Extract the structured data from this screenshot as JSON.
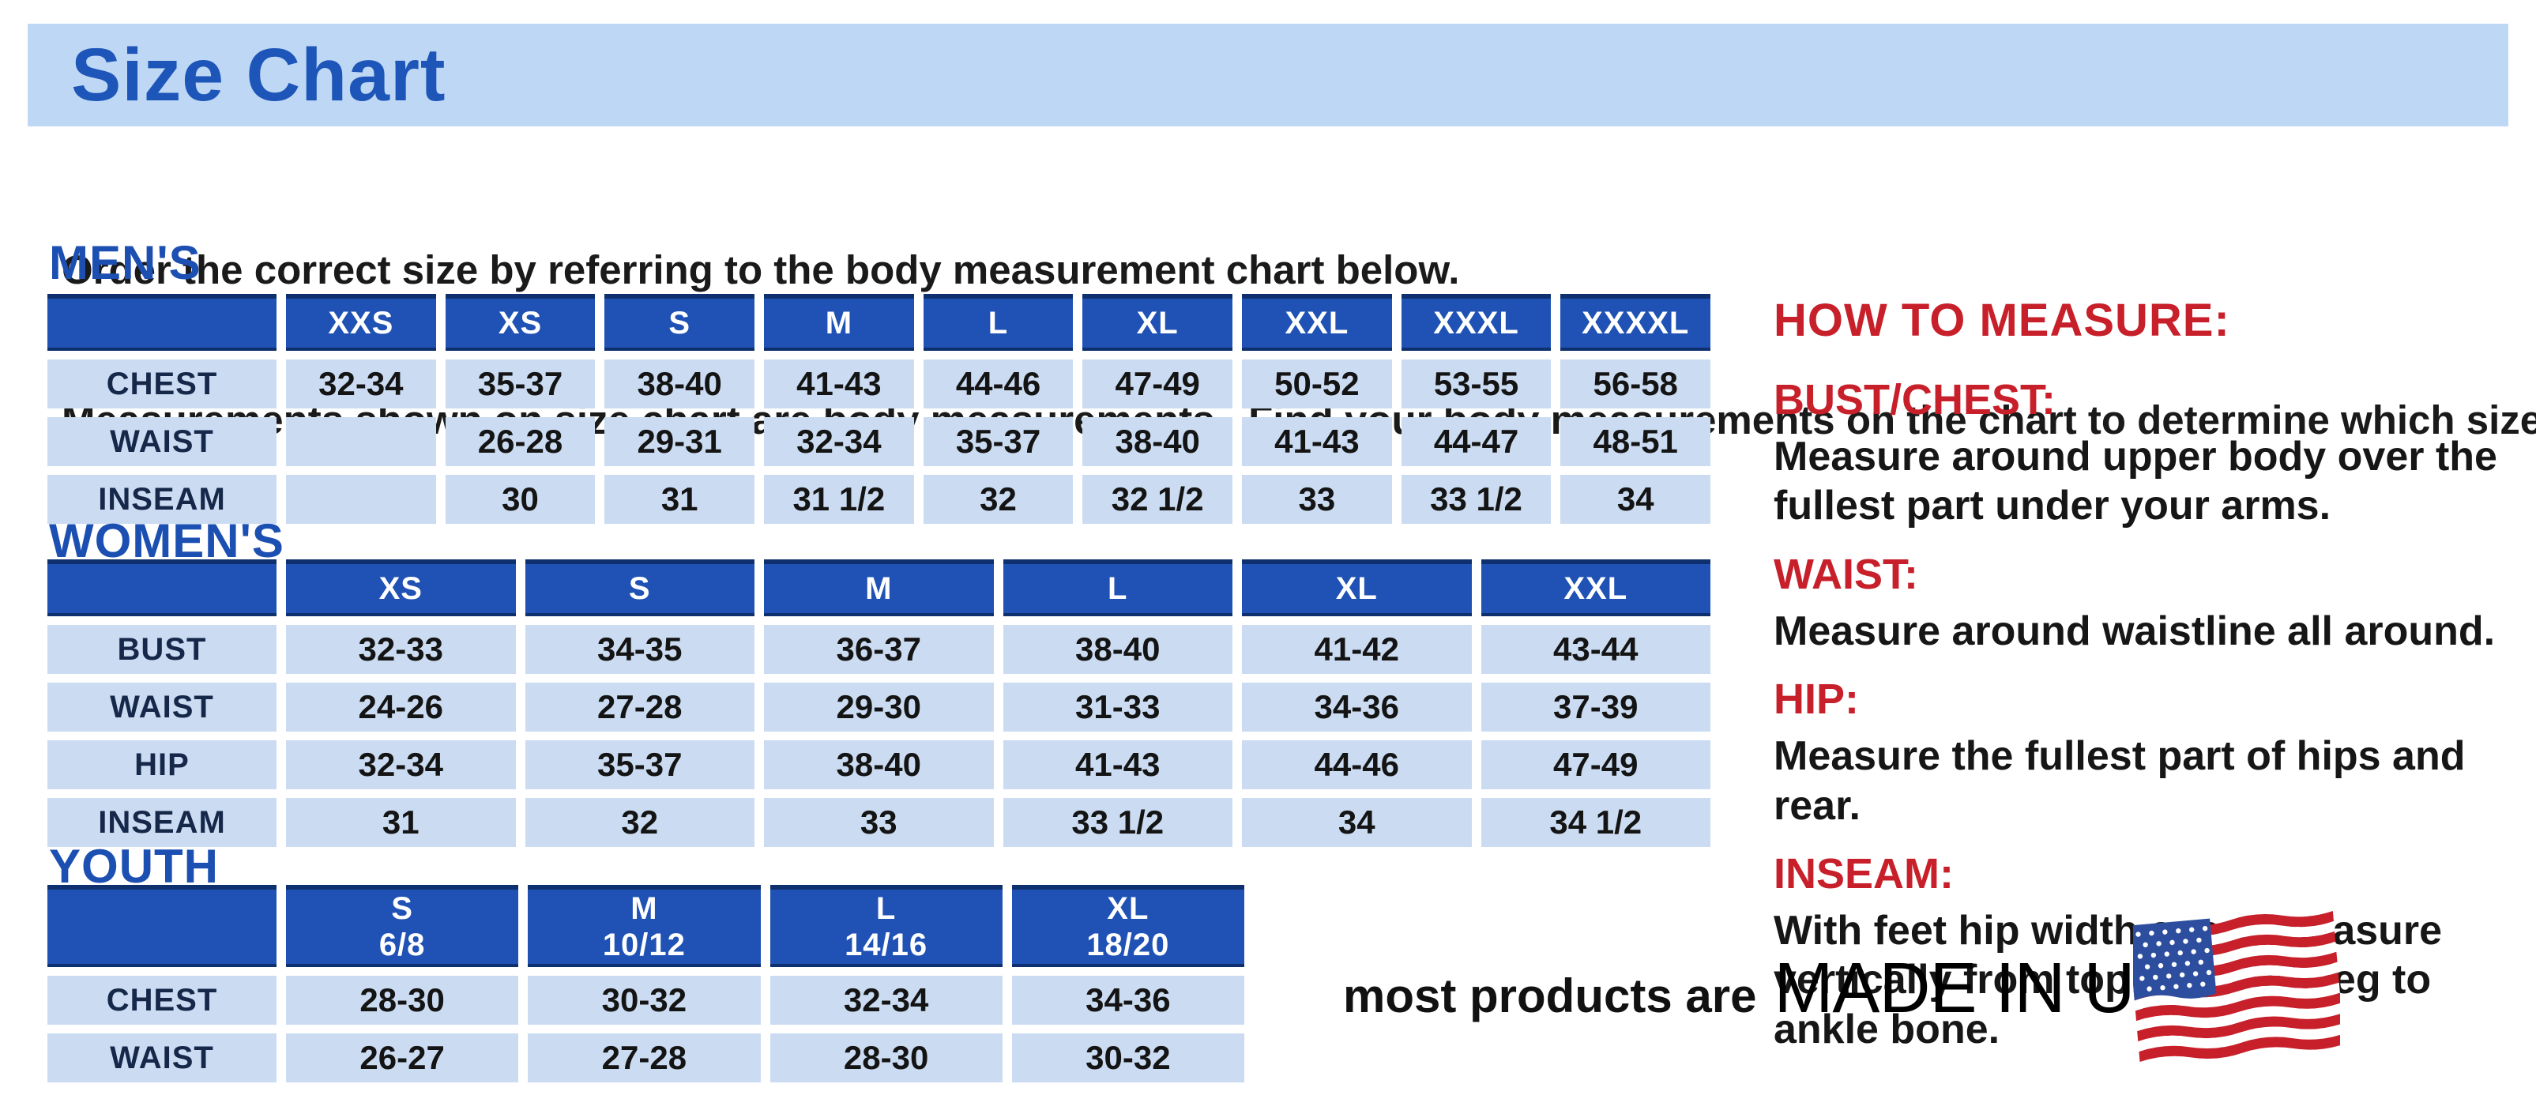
{
  "banner": {
    "title": "Size Chart"
  },
  "intro": {
    "line1": "Order the correct size by referring to the body measurement chart below.",
    "line2": "Measurements shown on size chart are body measurements.  Find your body measurements on the chart to determine which size to order."
  },
  "colors": {
    "banner_blue": "#bed7f5",
    "title_blue": "#1d56b8",
    "table_header_blue": "#1f52b4",
    "table_header_border": "#0e306e",
    "cell_light_blue": "#cbdcf2",
    "accent_red": "#c8202a"
  },
  "sections": {
    "mens": {
      "label": "MEN'S",
      "columns": [
        "",
        "XXS",
        "XS",
        "S",
        "M",
        "L",
        "XL",
        "XXL",
        "XXXL",
        "XXXXL"
      ],
      "rows": [
        {
          "label": "CHEST",
          "values": [
            "32-34",
            "35-37",
            "38-40",
            "41-43",
            "44-46",
            "47-49",
            "50-52",
            "53-55",
            "56-58"
          ]
        },
        {
          "label": "WAIST",
          "values": [
            "",
            "26-28",
            "29-31",
            "32-34",
            "35-37",
            "38-40",
            "41-43",
            "44-47",
            "48-51"
          ]
        },
        {
          "label": "INSEAM",
          "values": [
            "",
            "30",
            "31",
            "31 1/2",
            "32",
            "32 1/2",
            "33",
            "33 1/2",
            "34"
          ]
        }
      ]
    },
    "womens": {
      "label": "WOMEN'S",
      "columns": [
        "",
        "XS",
        "S",
        "M",
        "L",
        "XL",
        "XXL"
      ],
      "rows": [
        {
          "label": "BUST",
          "values": [
            "32-33",
            "34-35",
            "36-37",
            "38-40",
            "41-42",
            "43-44"
          ]
        },
        {
          "label": "WAIST",
          "values": [
            "24-26",
            "27-28",
            "29-30",
            "31-33",
            "34-36",
            "37-39"
          ]
        },
        {
          "label": "HIP",
          "values": [
            "32-34",
            "35-37",
            "38-40",
            "41-43",
            "44-46",
            "47-49"
          ]
        },
        {
          "label": "INSEAM",
          "values": [
            "31",
            "32",
            "33",
            "33 1/2",
            "34",
            "34 1/2"
          ]
        }
      ]
    },
    "youth": {
      "label": "YOUTH",
      "columns": [
        "",
        "S\n6/8",
        "M\n10/12",
        "L\n14/16",
        "XL\n18/20"
      ],
      "rows": [
        {
          "label": "CHEST",
          "values": [
            "28-30",
            "30-32",
            "32-34",
            "34-36"
          ]
        },
        {
          "label": "WAIST",
          "values": [
            "26-27",
            "27-28",
            "28-30",
            "30-32"
          ]
        }
      ]
    }
  },
  "how_to_measure": {
    "title": "HOW TO MEASURE:",
    "items": [
      {
        "label": "BUST/CHEST:",
        "text": "Measure around upper body over the fullest part under your arms."
      },
      {
        "label": "WAIST:",
        "text": "Measure around waistline all around."
      },
      {
        "label": "HIP:",
        "text": "Measure the fullest part of hips and rear."
      },
      {
        "label": "INSEAM:",
        "text": "With feet hip width apart, measure vertically from top of inside leg to ankle bone."
      }
    ]
  },
  "footer": {
    "prefix": "most products are",
    "made_in": "MADE IN USA",
    "flag_icon": "usa-flag-icon"
  }
}
